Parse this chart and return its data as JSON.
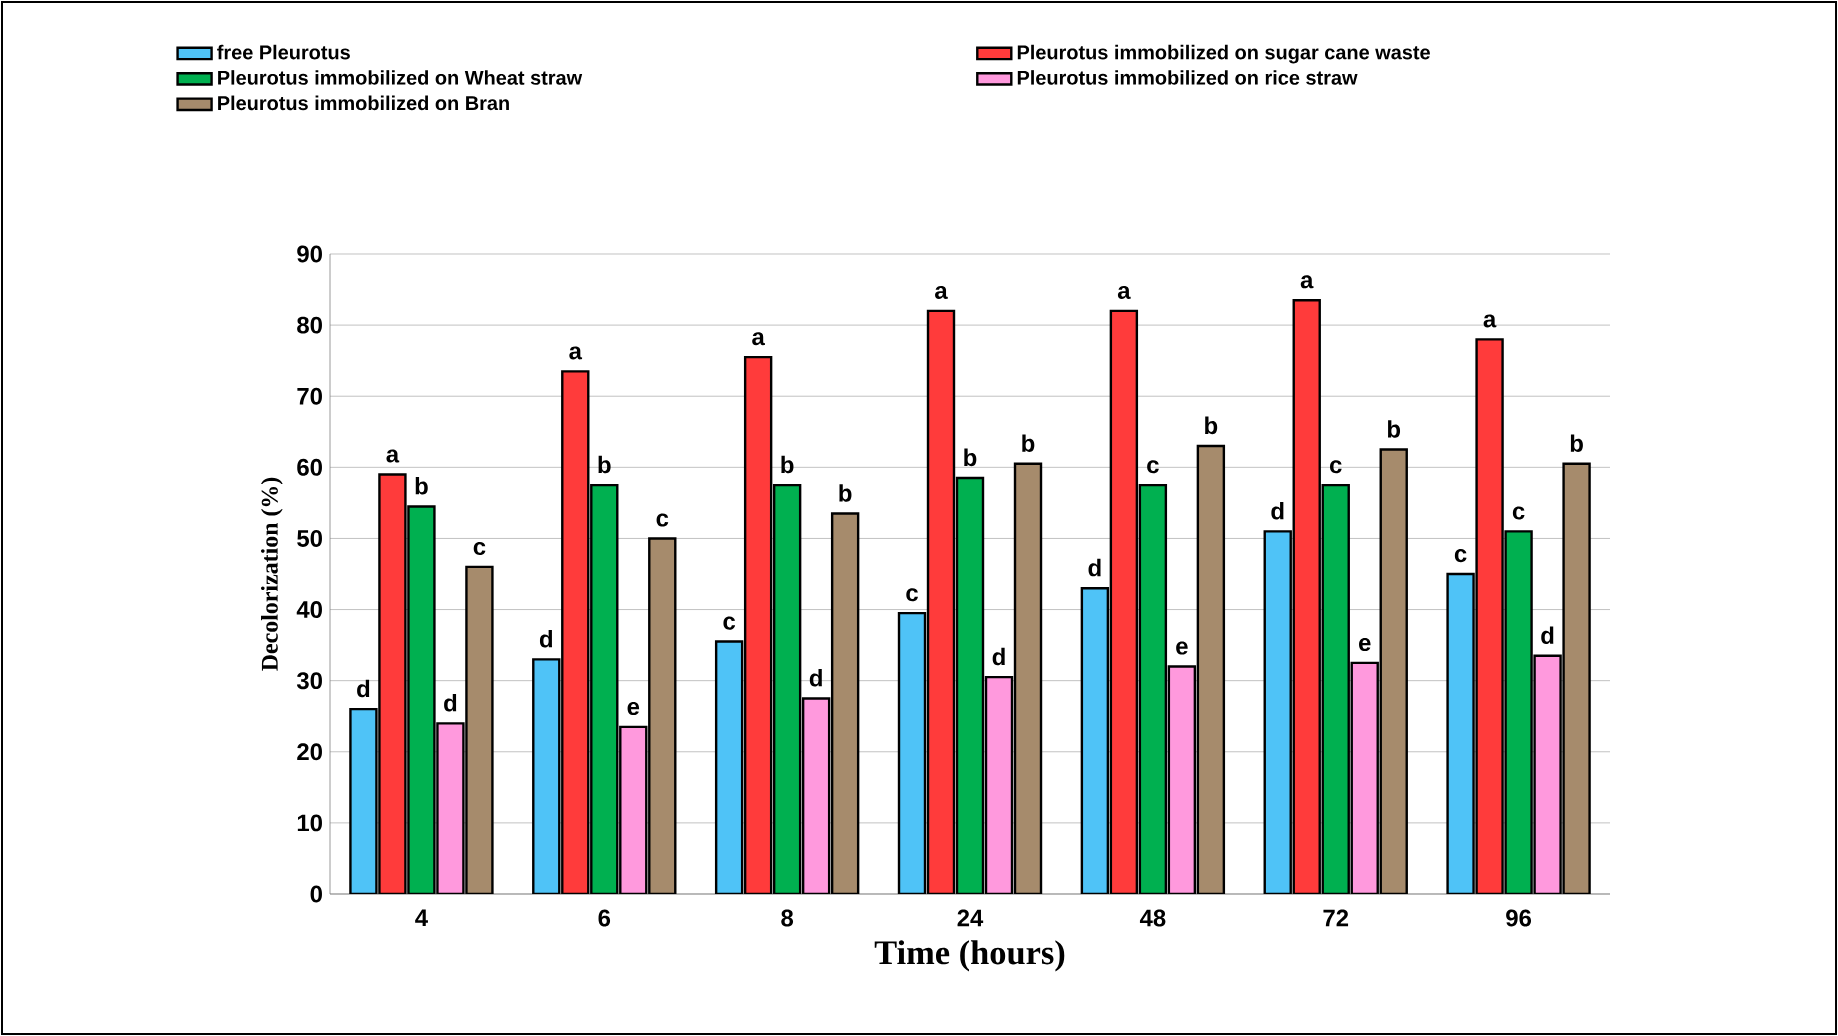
{
  "chart_data": {
    "type": "bar",
    "xlabel": "Time (hours)",
    "ylabel": "Decolorization  (%)",
    "categories": [
      "4",
      "6",
      "8",
      "24",
      "48",
      "72",
      "96"
    ],
    "series": [
      {
        "name": "free Pleurotus",
        "color": "#4fc3f7",
        "values": [
          26,
          33,
          35.5,
          39.5,
          43,
          51,
          45
        ],
        "value_labels": [
          "d",
          "d",
          "c",
          "c",
          "d",
          "d",
          "c"
        ]
      },
      {
        "name": "Pleurotus immobilized on sugar cane waste",
        "color": "#ff3b3b",
        "values": [
          59,
          73.5,
          75.5,
          82,
          82,
          83.5,
          78
        ],
        "value_labels": [
          "a",
          "a",
          "a",
          "a",
          "a",
          "a",
          "a"
        ]
      },
      {
        "name": "Pleurotus immobilized on Wheat straw",
        "color": "#00b050",
        "values": [
          54.5,
          57.5,
          57.5,
          58.5,
          57.5,
          57.5,
          51
        ],
        "value_labels": [
          "b",
          "b",
          "b",
          "b",
          "c",
          "c",
          "c"
        ]
      },
      {
        "name": "Pleurotus immobilized on rice straw",
        "color": "#ff99dd",
        "values": [
          24,
          23.5,
          27.5,
          30.5,
          32,
          32.5,
          33.5
        ],
        "value_labels": [
          "d",
          "e",
          "d",
          "d",
          "e",
          "e",
          "d"
        ]
      },
      {
        "name": "Pleurotus immobilized on Bran",
        "color": "#a68b6c",
        "values": [
          46,
          50,
          53.5,
          60.5,
          63,
          62.5,
          60.5
        ],
        "value_labels": [
          "c",
          "c",
          "b",
          "b",
          "b",
          "b",
          "b"
        ]
      }
    ],
    "ylim": [
      0,
      90
    ],
    "yticks": [
      0,
      10,
      20,
      30,
      40,
      50,
      60,
      70,
      80,
      90
    ],
    "grid": "y",
    "legend": "top"
  }
}
